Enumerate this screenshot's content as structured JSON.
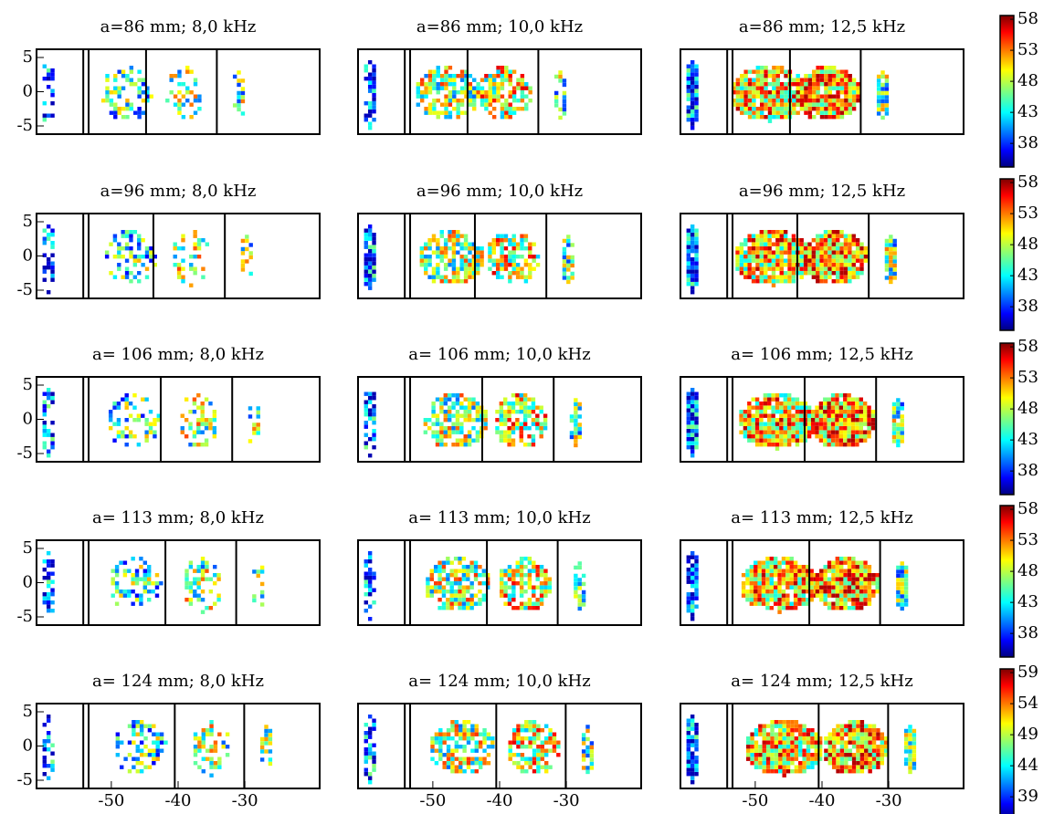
{
  "chart_data": [
    {
      "type": "heatmap",
      "title": "a=86 mm; 8,0 kHz",
      "xlim": [
        -61.2,
        -18.8
      ],
      "ylim": [
        -6.2,
        6.2
      ],
      "yticks": [
        5,
        0,
        -5
      ],
      "vlines": [
        -54.2,
        -53.4,
        -44.8,
        -34.2
      ]
    },
    {
      "type": "heatmap",
      "title": "a=86 mm; 10,0 kHz",
      "xlim": [
        -61.2,
        -18.8
      ],
      "ylim": [
        -6.2,
        6.2
      ],
      "vlines": [
        -54.2,
        -53.4,
        -44.8,
        -34.2
      ]
    },
    {
      "type": "heatmap",
      "title": "a=86 mm; 12,5 kHz",
      "xlim": [
        -61.2,
        -18.8
      ],
      "ylim": [
        -6.2,
        6.2
      ],
      "vlines": [
        -54.2,
        -53.4,
        -44.8,
        -34.2
      ]
    },
    {
      "type": "colorbar",
      "clim": [
        34.2,
        58.6
      ],
      "ticks": [
        58,
        53,
        48,
        43,
        38
      ]
    },
    {
      "type": "heatmap",
      "title": "a=96 mm; 8,0 kHz",
      "xlim": [
        -61.2,
        -18.8
      ],
      "ylim": [
        -6.2,
        6.2
      ],
      "yticks": [
        5,
        0,
        -5
      ],
      "vlines": [
        -54.2,
        -53.4,
        -43.7,
        -33.0
      ]
    },
    {
      "type": "heatmap",
      "title": "a=96 mm; 10,0 kHz",
      "xlim": [
        -61.2,
        -18.8
      ],
      "ylim": [
        -6.2,
        6.2
      ],
      "vlines": [
        -54.2,
        -53.4,
        -43.7,
        -33.0
      ]
    },
    {
      "type": "heatmap",
      "title": "a=96 mm; 12,5 kHz",
      "xlim": [
        -61.2,
        -18.8
      ],
      "ylim": [
        -6.2,
        6.2
      ],
      "vlines": [
        -54.2,
        -53.4,
        -43.7,
        -33.0
      ]
    },
    {
      "type": "colorbar",
      "clim": [
        34.2,
        58.6
      ],
      "ticks": [
        58,
        53,
        48,
        43,
        38
      ]
    },
    {
      "type": "heatmap",
      "title": "a= 106 mm; 8,0 kHz",
      "xlim": [
        -61.2,
        -18.8
      ],
      "ylim": [
        -6.2,
        6.2
      ],
      "yticks": [
        5,
        0,
        -5
      ],
      "vlines": [
        -54.2,
        -53.4,
        -42.6,
        -31.9
      ]
    },
    {
      "type": "heatmap",
      "title": "a= 106 mm; 10,0 kHz",
      "xlim": [
        -61.2,
        -18.8
      ],
      "ylim": [
        -6.2,
        6.2
      ],
      "vlines": [
        -54.2,
        -53.4,
        -42.6,
        -31.9
      ]
    },
    {
      "type": "heatmap",
      "title": "a= 106 mm; 12,5 kHz",
      "xlim": [
        -61.2,
        -18.8
      ],
      "ylim": [
        -6.2,
        6.2
      ],
      "vlines": [
        -54.2,
        -53.4,
        -42.6,
        -31.9
      ]
    },
    {
      "type": "colorbar",
      "clim": [
        34.2,
        58.6
      ],
      "ticks": [
        58,
        53,
        48,
        43,
        38
      ]
    },
    {
      "type": "heatmap",
      "title": "a= 113 mm; 8,0 kHz",
      "xlim": [
        -61.2,
        -18.8
      ],
      "ylim": [
        -6.2,
        6.2
      ],
      "yticks": [
        5,
        0,
        -5
      ],
      "vlines": [
        -54.2,
        -53.4,
        -41.9,
        -31.3
      ]
    },
    {
      "type": "heatmap",
      "title": "a= 113 mm; 10,0 kHz",
      "xlim": [
        -61.2,
        -18.8
      ],
      "ylim": [
        -6.2,
        6.2
      ],
      "vlines": [
        -54.2,
        -53.4,
        -41.9,
        -31.3
      ]
    },
    {
      "type": "heatmap",
      "title": "a= 113 mm; 12,5 kHz",
      "xlim": [
        -61.2,
        -18.8
      ],
      "ylim": [
        -6.2,
        6.2
      ],
      "vlines": [
        -54.2,
        -53.4,
        -41.9,
        -31.3
      ]
    },
    {
      "type": "colorbar",
      "clim": [
        34.2,
        58.6
      ],
      "ticks": [
        58,
        53,
        48,
        43,
        38
      ]
    },
    {
      "type": "heatmap",
      "title": "a= 124 mm; 8,0 kHz",
      "xlim": [
        -61.2,
        -18.8
      ],
      "ylim": [
        -6.2,
        6.2
      ],
      "xticks": [
        -50,
        -40,
        -30
      ],
      "yticks": [
        5,
        0,
        -5
      ],
      "vlines": [
        -54.2,
        -53.4,
        -40.5,
        -30.1
      ]
    },
    {
      "type": "heatmap",
      "title": "a= 124 mm; 10,0 kHz",
      "xlim": [
        -61.2,
        -18.8
      ],
      "ylim": [
        -6.2,
        6.2
      ],
      "xticks": [
        -50,
        -40,
        -30
      ],
      "vlines": [
        -54.2,
        -53.4,
        -40.5,
        -30.1
      ]
    },
    {
      "type": "heatmap",
      "title": "a= 124 mm; 12,5 kHz",
      "xlim": [
        -61.2,
        -18.8
      ],
      "ylim": [
        -6.2,
        6.2
      ],
      "xticks": [
        -50,
        -40,
        -30
      ],
      "vlines": [
        -54.2,
        -53.4,
        -40.5,
        -30.1
      ]
    },
    {
      "type": "colorbar",
      "clim": [
        35.2,
        59.6
      ],
      "ticks": [
        59,
        54,
        49,
        44,
        39
      ]
    }
  ]
}
